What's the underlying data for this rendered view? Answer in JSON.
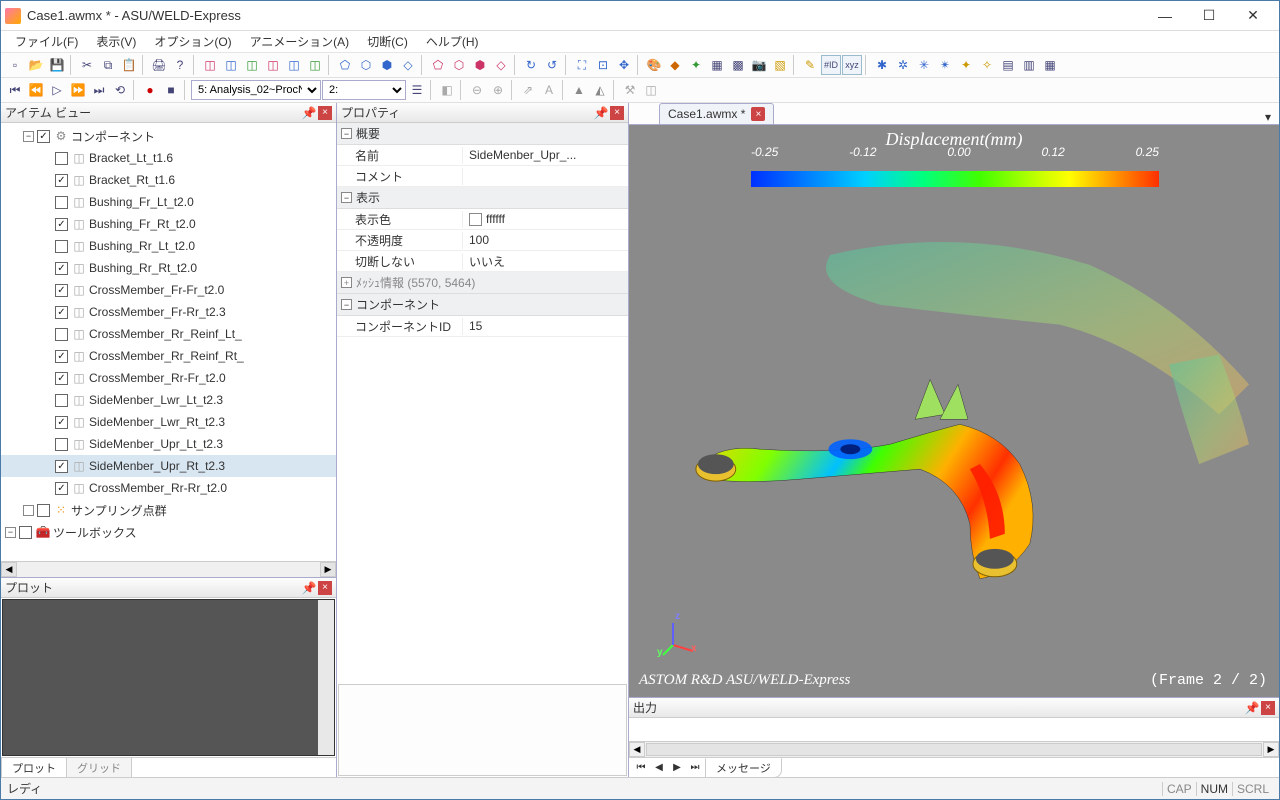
{
  "window": {
    "title": "Case1.awmx * - ASU/WELD-Express"
  },
  "menu": [
    "ファイル(F)",
    "表示(V)",
    "オプション(O)",
    "アニメーション(A)",
    "切断(C)",
    "ヘルプ(H)"
  ],
  "toolbar2": {
    "dropdown1_label": "5: Analysis_02~ProcN",
    "dropdown2_label": "2:"
  },
  "panels": {
    "item_view": "アイテム ビュー",
    "property": "プロパティ",
    "plot": "プロット",
    "output": "出力"
  },
  "tree": {
    "root": "コンポーネント",
    "items": [
      {
        "label": "Bracket_Lt_t1.6",
        "checked": false
      },
      {
        "label": "Bracket_Rt_t1.6",
        "checked": true
      },
      {
        "label": "Bushing_Fr_Lt_t2.0",
        "checked": false
      },
      {
        "label": "Bushing_Fr_Rt_t2.0",
        "checked": true
      },
      {
        "label": "Bushing_Rr_Lt_t2.0",
        "checked": false
      },
      {
        "label": "Bushing_Rr_Rt_t2.0",
        "checked": true
      },
      {
        "label": "CrossMember_Fr-Fr_t2.0",
        "checked": true
      },
      {
        "label": "CrossMember_Fr-Rr_t2.3",
        "checked": true
      },
      {
        "label": "CrossMember_Rr_Reinf_Lt_",
        "checked": false
      },
      {
        "label": "CrossMember_Rr_Reinf_Rt_",
        "checked": true
      },
      {
        "label": "CrossMember_Rr-Fr_t2.0",
        "checked": true
      },
      {
        "label": "SideMenber_Lwr_Lt_t2.3",
        "checked": false
      },
      {
        "label": "SideMenber_Lwr_Rt_t2.3",
        "checked": true
      },
      {
        "label": "SideMenber_Upr_Lt_t2.3",
        "checked": false
      },
      {
        "label": "SideMenber_Upr_Rt_t2.3",
        "checked": true,
        "selected": true
      },
      {
        "label": "CrossMember_Rr-Rr_t2.0",
        "checked": true
      }
    ],
    "sampling": "サンプリング点群",
    "toolbox": "ツールボックス"
  },
  "plot_tabs": {
    "active": "プロット",
    "inactive": "グリッド"
  },
  "properties": {
    "groups": {
      "overview": "概要",
      "display": "表示",
      "mesh": "ﾒｯｼｭ情報 (5570, 5464)",
      "component": "コンポーネント"
    },
    "rows": {
      "name_k": "名前",
      "name_v": "SideMenber_Upr_...",
      "comment_k": "コメント",
      "comment_v": "",
      "dispcolor_k": "表示色",
      "dispcolor_v": "ffffff",
      "opacity_k": "不透明度",
      "opacity_v": "100",
      "nocut_k": "切断しない",
      "nocut_v": "いいえ",
      "compid_k": "コンポーネントID",
      "compid_v": "15"
    }
  },
  "doc_tab": "Case1.awmx *",
  "viewport": {
    "legend_title": "Displacement(mm)",
    "ticks": [
      "-0.25",
      "-0.12",
      "0.00",
      "0.12",
      "0.25"
    ],
    "watermark": "ASTOM R&D ASU/WELD-Express",
    "frame": "(Frame    2 /    2)",
    "colors": {
      "bg": "#8a8a8a",
      "gradient": [
        "#0030ff",
        "#0080ff",
        "#00d0ff",
        "#00ff80",
        "#40ff00",
        "#c0ff00",
        "#ffff00",
        "#ffa000",
        "#ff3000"
      ]
    },
    "axes": {
      "x": "x",
      "y": "y",
      "z": "z"
    }
  },
  "output": {
    "tab": "メッセージ"
  },
  "status": {
    "ready": "レディ",
    "cap": "CAP",
    "num": "NUM",
    "scrl": "SCRL"
  }
}
